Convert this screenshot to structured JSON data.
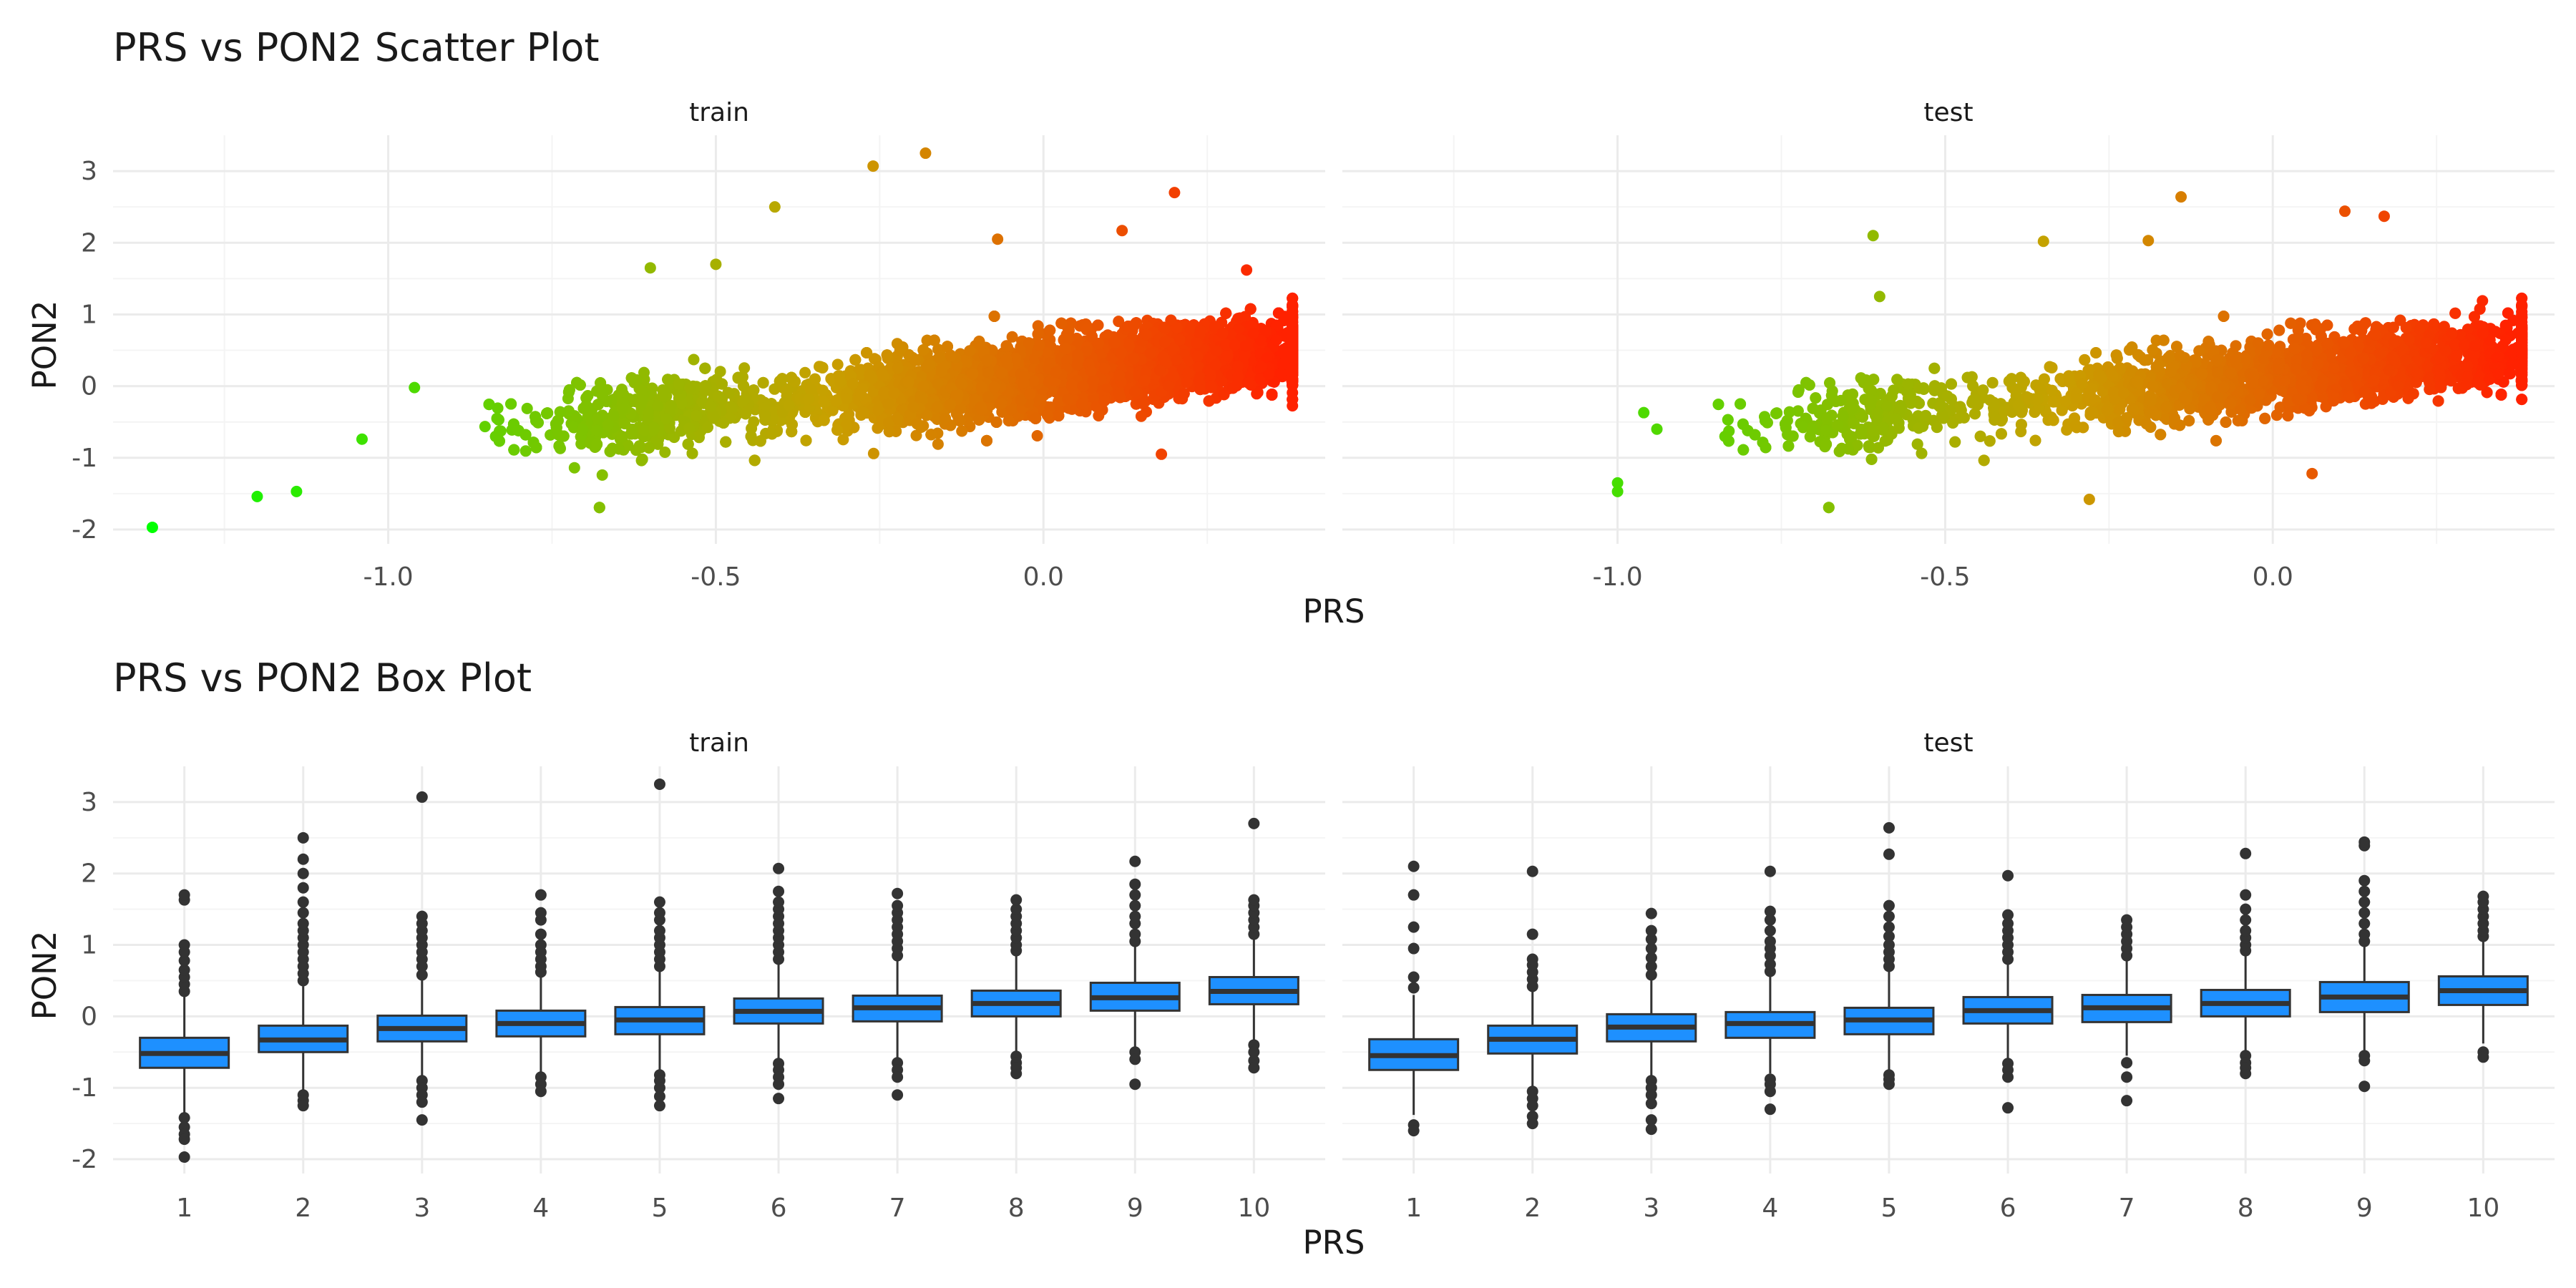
{
  "figure": {
    "colors": {
      "background": "#ffffff",
      "grid_major": "#ebebeb",
      "grid_minor": "#f4f4f4",
      "box_fill": "#1e90ff",
      "box_line": "#333333",
      "scatter_low": "#00ff00",
      "scatter_mid": "#c8a000",
      "scatter_high": "#ff2200"
    }
  },
  "chart_data": [
    {
      "type": "scatter",
      "title": "PRS vs PON2 Scatter Plot",
      "xlabel": "PRS",
      "ylabel": "PON2",
      "facets": [
        "train",
        "test"
      ],
      "xlim": [
        -1.42,
        0.43
      ],
      "ylim": [
        -2.2,
        3.5
      ],
      "x_ticks": [
        -1.0,
        -0.5,
        0.0
      ],
      "x_tick_labels": [
        "-1.0",
        "-0.5",
        "0.0"
      ],
      "y_ticks": [
        -2,
        -1,
        0,
        1,
        2,
        3
      ],
      "y_tick_labels": [
        "-2",
        "-1",
        "0",
        "1",
        "2",
        "3"
      ],
      "grid": true,
      "legend": "none",
      "color_encoding": "PRS (green low to red high)",
      "trend": {
        "slope": 0.95,
        "intercept": 0.15,
        "sd_at_center": 0.25
      },
      "notable_points": {
        "train": [
          [
            -1.36,
            -1.97
          ],
          [
            -0.26,
            3.07
          ],
          [
            -0.18,
            3.25
          ],
          [
            0.2,
            2.7
          ],
          [
            -0.41,
            2.5
          ],
          [
            0.12,
            2.17
          ],
          [
            -0.5,
            1.7
          ],
          [
            -0.6,
            1.65
          ],
          [
            -0.07,
            2.05
          ],
          [
            -1.04,
            -0.74
          ],
          [
            -1.14,
            -1.47
          ],
          [
            -1.2,
            -1.54
          ],
          [
            -0.96,
            -0.02
          ],
          [
            0.18,
            -0.95
          ],
          [
            0.31,
            1.62
          ]
        ],
        "test": [
          [
            -1.0,
            -1.47
          ],
          [
            -1.0,
            -1.35
          ],
          [
            -0.96,
            -0.37
          ],
          [
            -0.94,
            -0.6
          ],
          [
            -0.61,
            2.1
          ],
          [
            -0.14,
            2.64
          ],
          [
            -0.35,
            2.02
          ],
          [
            0.11,
            2.44
          ],
          [
            0.17,
            2.37
          ],
          [
            -0.19,
            2.03
          ],
          [
            -0.6,
            1.25
          ],
          [
            0.06,
            -1.22
          ],
          [
            -0.28,
            -1.58
          ],
          [
            0.32,
            1.19
          ]
        ]
      },
      "n_points_approx": {
        "train": 9000,
        "test": 4000
      }
    },
    {
      "type": "box",
      "title": "PRS vs PON2 Box Plot",
      "xlabel": "PRS",
      "ylabel": "PON2",
      "facets": [
        "train",
        "test"
      ],
      "categories": [
        "1",
        "2",
        "3",
        "4",
        "5",
        "6",
        "7",
        "8",
        "9",
        "10"
      ],
      "ylim": [
        -2.2,
        3.5
      ],
      "y_ticks": [
        -2,
        -1,
        0,
        1,
        2,
        3
      ],
      "y_tick_labels": [
        "-2",
        "-1",
        "0",
        "1",
        "2",
        "3"
      ],
      "grid": true,
      "legend": "none",
      "series": {
        "train": [
          {
            "q1": -0.72,
            "median": -0.52,
            "q3": -0.3,
            "lower": -1.35,
            "upper": 0.3,
            "outliers_low": [
              -1.42,
              -1.55,
              -1.65,
              -1.72,
              -1.97
            ],
            "outliers_high": [
              0.35,
              0.45,
              0.55,
              0.65,
              0.78,
              0.9,
              1.0,
              1.63,
              1.7
            ]
          },
          {
            "q1": -0.5,
            "median": -0.33,
            "q3": -0.13,
            "lower": -1.05,
            "upper": 0.42,
            "outliers_low": [
              -1.1,
              -1.18,
              -1.25
            ],
            "outliers_high": [
              0.5,
              0.6,
              0.7,
              0.8,
              0.9,
              1.0,
              1.1,
              1.2,
              1.3,
              1.45,
              1.6,
              1.8,
              2.0,
              2.2,
              2.5
            ]
          },
          {
            "q1": -0.35,
            "median": -0.17,
            "q3": 0.01,
            "lower": -0.85,
            "upper": 0.52,
            "outliers_low": [
              -0.9,
              -1.0,
              -1.1,
              -1.2,
              -1.45
            ],
            "outliers_high": [
              0.58,
              0.7,
              0.8,
              0.9,
              1.0,
              1.1,
              1.2,
              1.3,
              1.4,
              3.07
            ]
          },
          {
            "q1": -0.28,
            "median": -0.1,
            "q3": 0.08,
            "lower": -0.8,
            "upper": 0.58,
            "outliers_low": [
              -0.85,
              -0.95,
              -1.05
            ],
            "outliers_high": [
              0.62,
              0.7,
              0.8,
              0.9,
              1.0,
              1.15,
              1.35,
              1.45,
              1.7
            ]
          },
          {
            "q1": -0.25,
            "median": -0.05,
            "q3": 0.13,
            "lower": -0.78,
            "upper": 0.65,
            "outliers_low": [
              -0.82,
              -0.9,
              -1.0,
              -1.12,
              -1.25
            ],
            "outliers_high": [
              0.7,
              0.8,
              0.9,
              1.0,
              1.1,
              1.2,
              1.35,
              1.45,
              1.6,
              3.25
            ]
          },
          {
            "q1": -0.1,
            "median": 0.07,
            "q3": 0.25,
            "lower": -0.62,
            "upper": 0.75,
            "outliers_low": [
              -0.66,
              -0.75,
              -0.85,
              -0.95,
              -1.15
            ],
            "outliers_high": [
              0.8,
              0.9,
              1.0,
              1.1,
              1.2,
              1.3,
              1.4,
              1.5,
              1.6,
              1.75,
              2.07
            ]
          },
          {
            "q1": -0.07,
            "median": 0.12,
            "q3": 0.29,
            "lower": -0.6,
            "upper": 0.8,
            "outliers_low": [
              -0.65,
              -0.75,
              -0.85,
              -1.1
            ],
            "outliers_high": [
              0.85,
              0.95,
              1.05,
              1.15,
              1.25,
              1.35,
              1.45,
              1.55,
              1.72
            ]
          },
          {
            "q1": 0.0,
            "median": 0.18,
            "q3": 0.36,
            "lower": -0.52,
            "upper": 0.88,
            "outliers_low": [
              -0.56,
              -0.65,
              -0.72,
              -0.8
            ],
            "outliers_high": [
              0.92,
              1.0,
              1.1,
              1.2,
              1.3,
              1.4,
              1.5,
              1.63
            ]
          },
          {
            "q1": 0.08,
            "median": 0.26,
            "q3": 0.47,
            "lower": -0.45,
            "upper": 1.0,
            "outliers_low": [
              -0.5,
              -0.6,
              -0.95
            ],
            "outliers_high": [
              1.05,
              1.15,
              1.3,
              1.4,
              1.55,
              1.7,
              1.85,
              2.17
            ]
          },
          {
            "q1": 0.17,
            "median": 0.35,
            "q3": 0.55,
            "lower": -0.35,
            "upper": 1.1,
            "outliers_low": [
              -0.4,
              -0.5,
              -0.62,
              -0.72
            ],
            "outliers_high": [
              1.15,
              1.25,
              1.35,
              1.45,
              1.55,
              1.63,
              2.7
            ]
          }
        ],
        "test": [
          {
            "q1": -0.75,
            "median": -0.55,
            "q3": -0.32,
            "lower": -1.38,
            "upper": 0.3,
            "outliers_low": [
              -1.52,
              -1.6
            ],
            "outliers_high": [
              0.4,
              0.55,
              0.95,
              1.25,
              1.7,
              2.1
            ]
          },
          {
            "q1": -0.52,
            "median": -0.32,
            "q3": -0.13,
            "lower": -1.0,
            "upper": 0.35,
            "outliers_low": [
              -1.05,
              -1.15,
              -1.25,
              -1.4,
              -1.5
            ],
            "outliers_high": [
              0.42,
              0.52,
              0.62,
              0.72,
              0.8,
              1.15,
              2.03
            ]
          },
          {
            "q1": -0.35,
            "median": -0.15,
            "q3": 0.03,
            "lower": -0.85,
            "upper": 0.52,
            "outliers_low": [
              -0.9,
              -1.0,
              -1.1,
              -1.22,
              -1.45,
              -1.58
            ],
            "outliers_high": [
              0.58,
              0.7,
              0.82,
              0.95,
              1.08,
              1.2,
              1.44
            ]
          },
          {
            "q1": -0.3,
            "median": -0.1,
            "q3": 0.06,
            "lower": -0.8,
            "upper": 0.58,
            "outliers_low": [
              -0.88,
              -0.95,
              -1.05,
              -1.3
            ],
            "outliers_high": [
              0.63,
              0.73,
              0.85,
              0.95,
              1.05,
              1.2,
              1.35,
              1.47,
              2.03
            ]
          },
          {
            "q1": -0.25,
            "median": -0.05,
            "q3": 0.12,
            "lower": -0.78,
            "upper": 0.65,
            "outliers_low": [
              -0.82,
              -0.88,
              -0.95
            ],
            "outliers_high": [
              0.7,
              0.8,
              0.9,
              1.0,
              1.12,
              1.25,
              1.4,
              1.55,
              2.27,
              2.64
            ]
          },
          {
            "q1": -0.1,
            "median": 0.08,
            "q3": 0.27,
            "lower": -0.62,
            "upper": 0.75,
            "outliers_low": [
              -0.66,
              -0.75,
              -0.85,
              -1.28
            ],
            "outliers_high": [
              0.8,
              0.9,
              1.0,
              1.1,
              1.2,
              1.3,
              1.42,
              1.97
            ]
          },
          {
            "q1": -0.08,
            "median": 0.12,
            "q3": 0.3,
            "lower": -0.55,
            "upper": 0.8,
            "outliers_low": [
              -0.65,
              -0.85,
              -1.18
            ],
            "outliers_high": [
              0.85,
              0.95,
              1.05,
              1.15,
              1.25,
              1.35
            ]
          },
          {
            "q1": 0.0,
            "median": 0.18,
            "q3": 0.37,
            "lower": -0.5,
            "upper": 0.88,
            "outliers_low": [
              -0.55,
              -0.65,
              -0.72,
              -0.8
            ],
            "outliers_high": [
              0.92,
              1.0,
              1.1,
              1.2,
              1.35,
              1.5,
              1.7,
              2.28
            ]
          },
          {
            "q1": 0.06,
            "median": 0.27,
            "q3": 0.48,
            "lower": -0.5,
            "upper": 1.0,
            "outliers_low": [
              -0.55,
              -0.62,
              -0.98
            ],
            "outliers_high": [
              1.05,
              1.15,
              1.3,
              1.45,
              1.6,
              1.75,
              1.9,
              2.39,
              2.44
            ]
          },
          {
            "q1": 0.16,
            "median": 0.36,
            "q3": 0.56,
            "lower": -0.38,
            "upper": 1.08,
            "outliers_low": [
              -0.5,
              -0.57
            ],
            "outliers_high": [
              1.12,
              1.2,
              1.3,
              1.4,
              1.5,
              1.6,
              1.68
            ]
          }
        ]
      }
    }
  ]
}
